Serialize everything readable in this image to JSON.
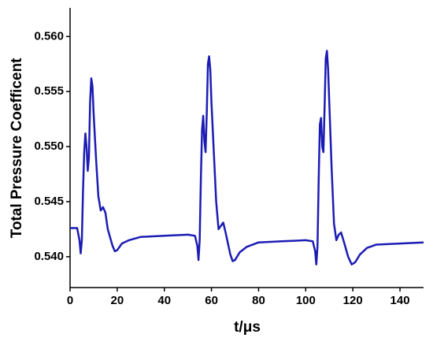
{
  "chart_data": {
    "type": "line",
    "x_label": "t/μs",
    "y_label": "Total Pressure Coefficent",
    "x": [
      0,
      3,
      4,
      4.5,
      5,
      5.5,
      6,
      6.5,
      7,
      7.5,
      8,
      8.5,
      9,
      9.5,
      10,
      11,
      12,
      13,
      14,
      15,
      16,
      18,
      19,
      20,
      22,
      25,
      30,
      40,
      50,
      53,
      54,
      54.5,
      55,
      55.5,
      56,
      56.5,
      57,
      57.5,
      58,
      58.5,
      59,
      59.5,
      60,
      61,
      62,
      63,
      64,
      65,
      66,
      68,
      69,
      70,
      72,
      75,
      80,
      90,
      100,
      103,
      104,
      104.5,
      105,
      105.5,
      106,
      106.5,
      107,
      107.5,
      108,
      108.5,
      109,
      109.5,
      110,
      111,
      112,
      113,
      114,
      115,
      116,
      118,
      119.5,
      121,
      123,
      126,
      130,
      140,
      150
    ],
    "values": [
      0.5426,
      0.5426,
      0.5415,
      0.5403,
      0.5415,
      0.546,
      0.5495,
      0.5512,
      0.55,
      0.5478,
      0.549,
      0.554,
      0.5562,
      0.5555,
      0.553,
      0.549,
      0.5455,
      0.5442,
      0.5445,
      0.544,
      0.5425,
      0.541,
      0.5405,
      0.5406,
      0.5412,
      0.5415,
      0.5418,
      0.5419,
      0.542,
      0.5419,
      0.541,
      0.5397,
      0.5415,
      0.547,
      0.5515,
      0.5528,
      0.5505,
      0.5495,
      0.553,
      0.5575,
      0.5582,
      0.557,
      0.554,
      0.5495,
      0.545,
      0.5425,
      0.5428,
      0.5431,
      0.5422,
      0.5402,
      0.5396,
      0.5397,
      0.5404,
      0.5409,
      0.5413,
      0.5414,
      0.5415,
      0.5414,
      0.5405,
      0.5393,
      0.541,
      0.547,
      0.552,
      0.5526,
      0.55,
      0.5495,
      0.5535,
      0.558,
      0.5587,
      0.557,
      0.554,
      0.548,
      0.543,
      0.5415,
      0.542,
      0.5422,
      0.5415,
      0.54,
      0.5393,
      0.5395,
      0.5402,
      0.5408,
      0.5411,
      0.5412,
      0.5413
    ],
    "color": "#1c1cb4",
    "xlim": [
      0,
      150
    ],
    "xticks": [
      0,
      20,
      40,
      60,
      80,
      100,
      120,
      140
    ],
    "ylim": [
      0.5372,
      0.5626
    ],
    "yticks": [
      {
        "value": 0.54,
        "label": "0.540"
      },
      {
        "value": 0.545,
        "label": "0.545"
      },
      {
        "value": 0.55,
        "label": "0.550"
      },
      {
        "value": 0.555,
        "label": "0.555"
      },
      {
        "value": 0.56,
        "label": "0.560"
      }
    ]
  }
}
